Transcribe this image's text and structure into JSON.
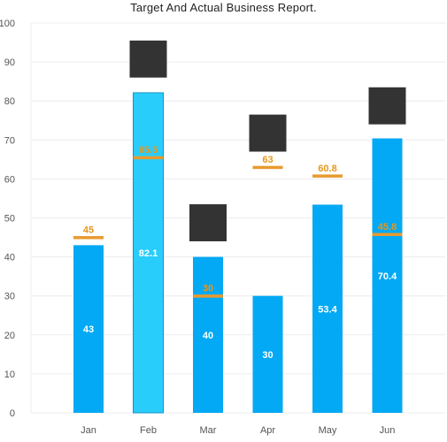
{
  "chart_data": {
    "type": "bar",
    "title": "Target And Actual Business Report.",
    "xlabel": "",
    "ylabel": "",
    "ylim": [
      0,
      100
    ],
    "yticks": [
      0,
      10,
      20,
      30,
      40,
      50,
      60,
      70,
      80,
      90,
      100
    ],
    "grid": true,
    "categories": [
      "Jan",
      "Feb",
      "Mar",
      "Apr",
      "May",
      "Jun"
    ],
    "series": [
      {
        "name": "",
        "values": [
          43,
          82.1,
          40,
          30,
          53.4,
          70.4
        ]
      },
      {
        "name": "",
        "values": [
          45,
          65.5,
          30,
          63,
          60.8,
          45.8
        ]
      }
    ],
    "highlighted_category": "Feb",
    "dark_markers": [
      {
        "category": "Feb",
        "from": 86,
        "to": 95.5
      },
      {
        "category": "Mar",
        "from": 44,
        "to": 53.5
      },
      {
        "category": "Apr",
        "from": 67,
        "to": 76.5
      },
      {
        "category": "Jun",
        "from": 74,
        "to": 83.5
      }
    ],
    "colors": {
      "bar": "#03a9f4",
      "bar_highlight": "#29cdfc",
      "bar_highlight_border": "#1593c4",
      "target_line": "#e89a2e",
      "target_label": "#e8961c",
      "bar_label": "#ffffff",
      "dark_marker": "#333333",
      "grid": "#ececec",
      "axis_text": "#555555"
    }
  }
}
